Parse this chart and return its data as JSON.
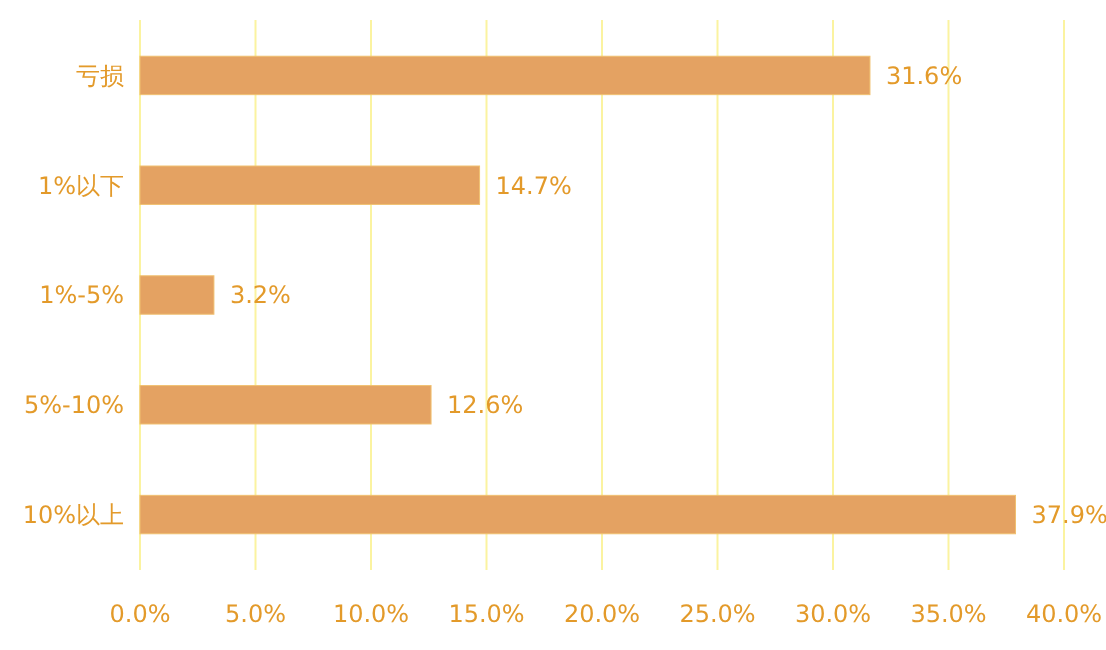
{
  "chart_data": {
    "type": "bar",
    "orientation": "horizontal",
    "categories": [
      "亏损",
      "1%以下",
      "1%-5%",
      "5%-10%",
      "10%以上"
    ],
    "values": [
      31.6,
      14.7,
      3.2,
      12.6,
      37.9
    ],
    "color": "#e4a262",
    "xlim": [
      0,
      40
    ],
    "xticks": [
      {
        "value": 0,
        "label": "0.0%"
      },
      {
        "value": 5,
        "label": "5.0%"
      },
      {
        "value": 10,
        "label": "10.0%"
      },
      {
        "value": 15,
        "label": "15.0%"
      },
      {
        "value": 20,
        "label": "20.0%"
      },
      {
        "value": 25,
        "label": "25.0%"
      },
      {
        "value": 30,
        "label": "30.0%"
      },
      {
        "value": 35,
        "label": "35.0%"
      },
      {
        "value": 40,
        "label": "40.0%"
      }
    ],
    "grid": "x",
    "value_labels": [
      "31.6%",
      "14.7%",
      "3.2%",
      "12.6%",
      "37.9%"
    ]
  }
}
